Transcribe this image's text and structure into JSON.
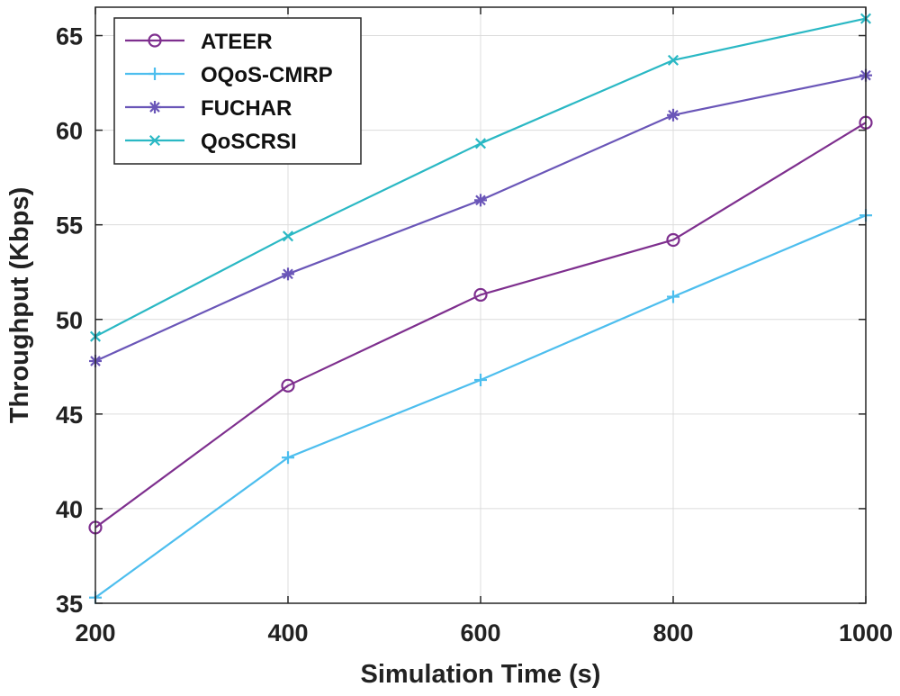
{
  "chart_data": {
    "type": "line",
    "title": "",
    "xlabel": "Simulation Time (s)",
    "ylabel": "Throughput (Kbps)",
    "x": [
      200,
      400,
      600,
      800,
      1000
    ],
    "xlim": [
      200,
      1000
    ],
    "ylim": [
      35,
      66.5
    ],
    "xticks": [
      200,
      400,
      600,
      800,
      1000
    ],
    "yticks": [
      35,
      40,
      45,
      50,
      55,
      60,
      65
    ],
    "grid": true,
    "legend_position": "top-left",
    "series": [
      {
        "name": "ATEER",
        "values": [
          39.0,
          46.5,
          51.3,
          54.2,
          60.4
        ],
        "color": "#7e2f8e",
        "marker": "circle"
      },
      {
        "name": "OQoS-CMRP",
        "values": [
          35.3,
          42.7,
          46.8,
          51.2,
          55.5
        ],
        "color": "#4dbeee",
        "marker": "plus"
      },
      {
        "name": "FUCHAR",
        "values": [
          47.8,
          52.4,
          56.3,
          60.8,
          62.9
        ],
        "color": "#6a56b8",
        "marker": "asterisk"
      },
      {
        "name": "QoSCRSI",
        "values": [
          49.1,
          54.4,
          59.3,
          63.7,
          65.9
        ],
        "color": "#2ab8c4",
        "marker": "x"
      }
    ]
  }
}
